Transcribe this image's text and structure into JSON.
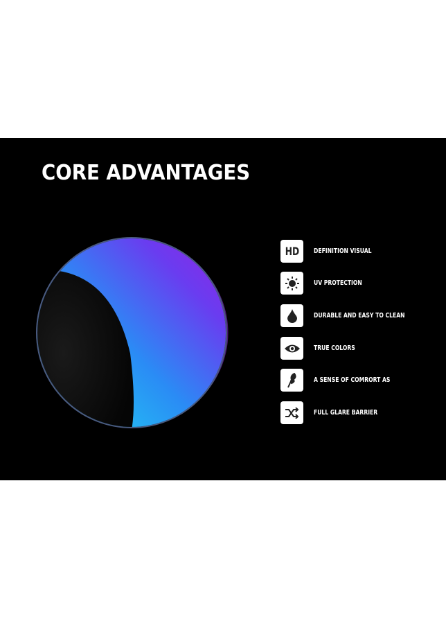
{
  "title": "CORE ADVANTAGES",
  "features": [
    {
      "icon": "hd-icon",
      "icon_text": "HD",
      "label": "DEFINITION VISUAL"
    },
    {
      "icon": "sun-icon",
      "label": "UV PROTECTION"
    },
    {
      "icon": "water-drop-icon",
      "label": "DURABLE AND EASY TO CLEAN"
    },
    {
      "icon": "eye-icon",
      "label": "TRUE COLORS"
    },
    {
      "icon": "feather-icon",
      "label": "A SENSE OF COMRORT AS"
    },
    {
      "icon": "shuffle-icon",
      "label": "FULL GLARE BARRIER"
    }
  ],
  "colors": {
    "background": "#000000",
    "lens_blue": "#2fd0f5",
    "lens_purple": "#8a2be2"
  }
}
